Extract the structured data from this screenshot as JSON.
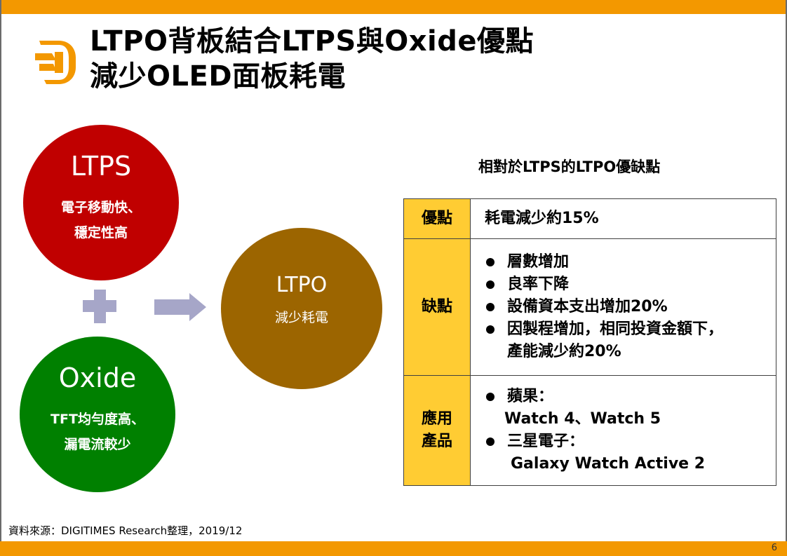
{
  "slide": {
    "title_line1": "LTPO背板結合LTPS與Oxide優點",
    "title_line2": "減少OLED面板耗電",
    "page_number": "6",
    "source": "資料來源：DIGITIMES Research整理，2019/12",
    "logo_icon": "digitimes-logo-icon",
    "colors": {
      "accent_bar": "#f39800",
      "ltps": "#c00000",
      "oxide": "#008000",
      "ltpo": "#9c6500",
      "operator": "#a6a6c8",
      "table_label": "#ffcc33"
    }
  },
  "diagram": {
    "ltps": {
      "name": "LTPS",
      "desc_line1": "電子移動快、",
      "desc_line2": "穩定性高"
    },
    "oxide": {
      "name": "Oxide",
      "desc_line1": "TFT均勻度高、",
      "desc_line2": "漏電流較少"
    },
    "ltpo": {
      "name": "LTPO",
      "desc": "減少耗電"
    },
    "plus_icon": "plus-icon",
    "arrow_icon": "arrow-right-icon"
  },
  "table": {
    "title": "相對於LTPS的LTPO優缺點",
    "rows": [
      {
        "label": "優點",
        "content": "耗電減少約15%"
      },
      {
        "label": "缺點",
        "bullets": [
          {
            "line1": "層數增加"
          },
          {
            "line1": "良率下降"
          },
          {
            "line1": "設備資本支出增加20%"
          },
          {
            "line1": "因製程增加，相同投資金額下，",
            "line2": "產能減少約20%"
          }
        ]
      },
      {
        "label_line1": "應用",
        "label_line2": "產品",
        "bullets": [
          {
            "line1": "蘋果：",
            "line2": "Watch 4、Watch 5"
          },
          {
            "line1": "三星電子：",
            "line2": "Galaxy Watch Active 2"
          }
        ]
      }
    ]
  }
}
